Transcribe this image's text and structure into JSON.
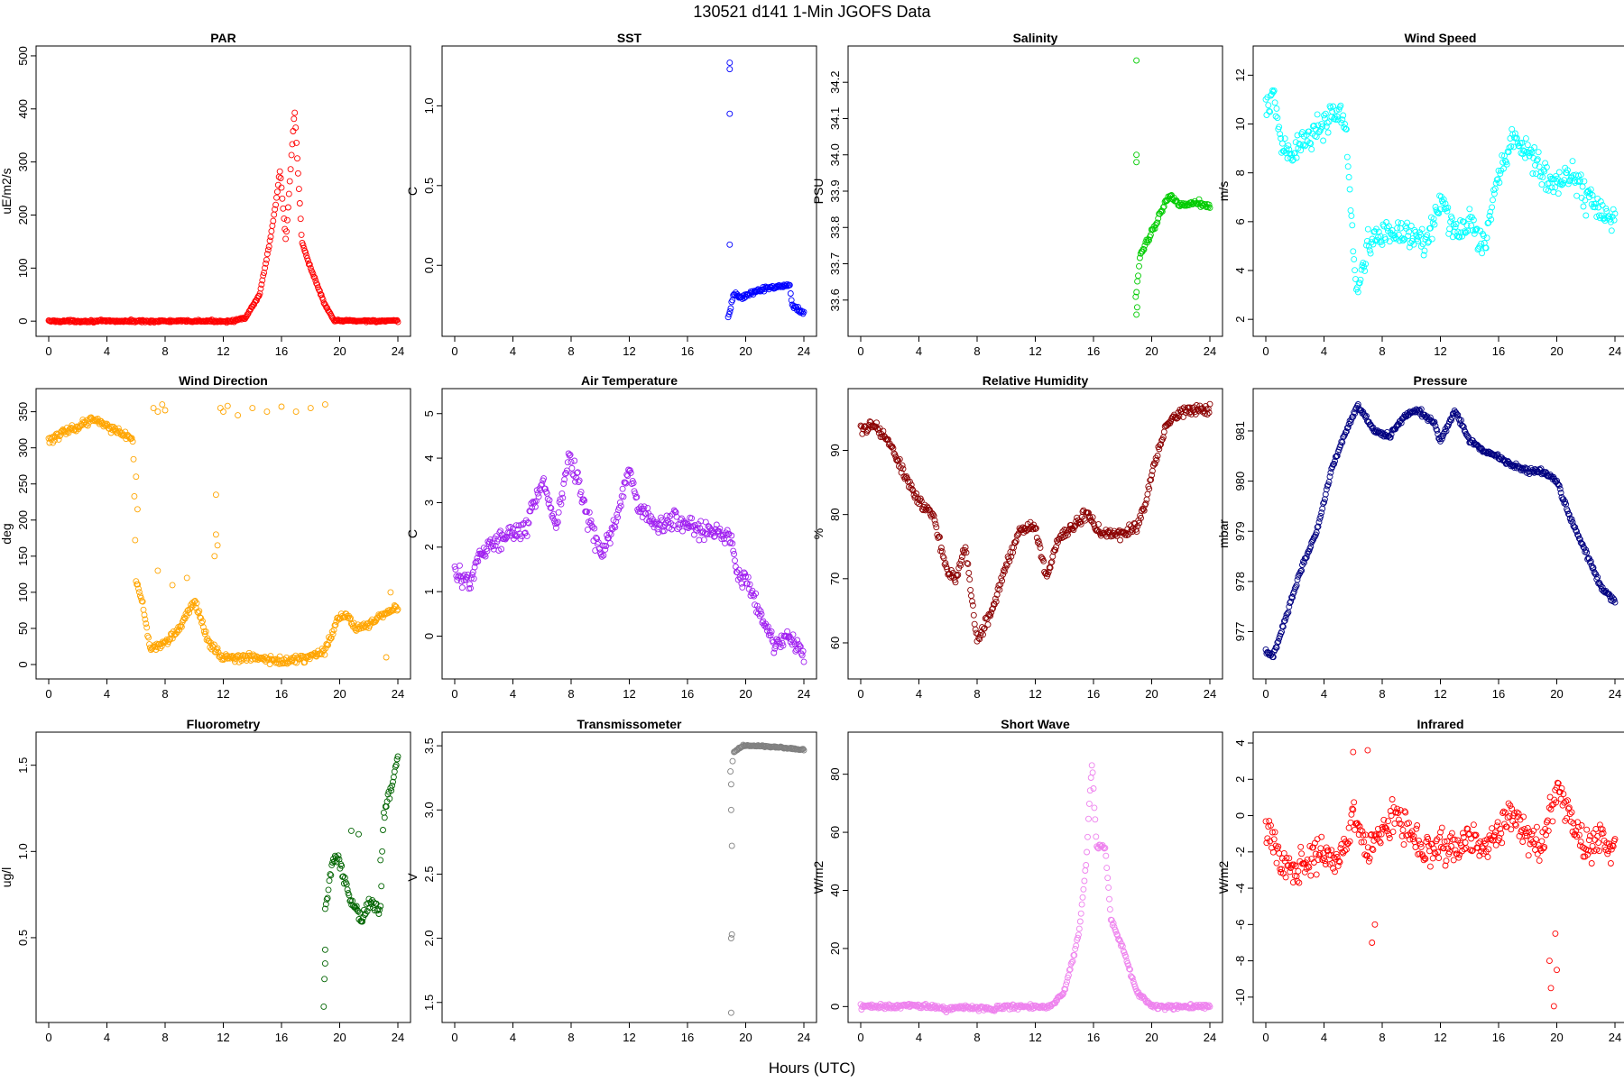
{
  "main_title": "130521   d141   1-Min  JGOFS Data",
  "shared_xlabel": "Hours (UTC)",
  "chart_data": [
    {
      "type": "scatter",
      "title": "PAR",
      "ylabel": "uE/m2/s",
      "color": "#ff0000",
      "xlim": [
        0,
        24
      ],
      "ylim": [
        -15,
        505
      ],
      "xticks": [
        0,
        4,
        8,
        12,
        16,
        20,
        24
      ],
      "yticks": [
        0,
        100,
        200,
        300,
        400,
        500
      ],
      "anchors": [
        [
          0,
          0
        ],
        [
          12.5,
          0
        ],
        [
          13.5,
          5
        ],
        [
          14.5,
          50
        ],
        [
          15.2,
          150
        ],
        [
          15.6,
          220
        ],
        [
          15.9,
          285
        ],
        [
          16.3,
          150
        ],
        [
          16.9,
          400
        ],
        [
          17.4,
          150
        ],
        [
          18.0,
          100
        ],
        [
          19.0,
          30
        ],
        [
          19.6,
          1
        ],
        [
          24,
          0
        ]
      ],
      "noise": 3
    },
    {
      "type": "scatter",
      "title": "SST",
      "ylabel": "C",
      "color": "#0000ff",
      "xlim": [
        0,
        24
      ],
      "ylim": [
        -0.4,
        1.33
      ],
      "xticks": [
        0,
        4,
        8,
        12,
        16,
        20,
        24
      ],
      "yticks": [
        0.0,
        0.5,
        1.0
      ],
      "anchors": [
        [
          18.8,
          -0.33
        ],
        [
          19.2,
          -0.18
        ],
        [
          19.8,
          -0.2
        ],
        [
          20.5,
          -0.17
        ],
        [
          21.5,
          -0.14
        ],
        [
          22.5,
          -0.13
        ],
        [
          23.0,
          -0.12
        ],
        [
          23.2,
          -0.25
        ],
        [
          24,
          -0.3
        ]
      ],
      "noise": 0.02,
      "extra_points": [
        [
          18.9,
          1.27
        ],
        [
          18.9,
          1.23
        ],
        [
          18.9,
          0.95
        ],
        [
          18.9,
          0.13
        ]
      ]
    },
    {
      "type": "scatter",
      "title": "Salinity",
      "ylabel": "PSU",
      "color": "#00cc00",
      "xlim": [
        0,
        24
      ],
      "ylim": [
        33.52,
        34.28
      ],
      "xticks": [
        0,
        4,
        8,
        12,
        16,
        20,
        24
      ],
      "yticks": [
        33.6,
        33.7,
        33.8,
        33.9,
        34.0,
        34.1,
        34.2
      ],
      "anchors": [
        [
          18.9,
          33.6
        ],
        [
          19.2,
          33.72
        ],
        [
          19.6,
          33.76
        ],
        [
          20.2,
          33.8
        ],
        [
          20.8,
          33.86
        ],
        [
          21.3,
          33.89
        ],
        [
          22.0,
          33.86
        ],
        [
          23.0,
          33.87
        ],
        [
          24,
          33.86
        ]
      ],
      "noise": 0.012,
      "extra_points": [
        [
          18.95,
          34.26
        ],
        [
          18.95,
          34.0
        ],
        [
          18.95,
          33.98
        ],
        [
          18.95,
          33.56
        ],
        [
          19.0,
          33.58
        ]
      ]
    },
    {
      "type": "scatter",
      "title": "Wind Speed",
      "ylabel": "m/s",
      "color": "#00ffff",
      "xlim": [
        0,
        24
      ],
      "ylim": [
        1.6,
        12.9
      ],
      "xticks": [
        0,
        4,
        8,
        12,
        16,
        20,
        24
      ],
      "yticks": [
        2,
        4,
        6,
        8,
        10,
        12
      ],
      "anchors": [
        [
          0,
          10.5
        ],
        [
          0.5,
          11.5
        ],
        [
          1.0,
          9
        ],
        [
          2,
          9
        ],
        [
          3,
          9.5
        ],
        [
          4,
          10
        ],
        [
          5,
          10.5
        ],
        [
          5.5,
          10
        ],
        [
          5.8,
          7
        ],
        [
          6.2,
          3
        ],
        [
          7,
          5
        ],
        [
          8,
          5.5
        ],
        [
          10,
          5.5
        ],
        [
          11,
          5
        ],
        [
          12,
          7
        ],
        [
          13,
          5.5
        ],
        [
          14,
          6
        ],
        [
          15,
          5
        ],
        [
          16,
          8
        ],
        [
          17,
          9.5
        ],
        [
          18,
          9
        ],
        [
          19,
          8
        ],
        [
          20,
          7.5
        ],
        [
          21,
          8
        ],
        [
          22,
          7
        ],
        [
          23,
          6.5
        ],
        [
          24,
          6
        ]
      ],
      "noise": 0.9
    },
    {
      "type": "scatter",
      "title": "Wind Direction",
      "ylabel": "deg",
      "color": "#ffa500",
      "xlim": [
        0,
        24
      ],
      "ylim": [
        -10,
        372
      ],
      "xticks": [
        0,
        4,
        8,
        12,
        16,
        20,
        24
      ],
      "yticks": [
        0,
        50,
        100,
        150,
        200,
        250,
        300,
        350
      ],
      "anchors": [
        [
          0,
          310
        ],
        [
          1,
          320
        ],
        [
          2,
          330
        ],
        [
          3,
          340
        ],
        [
          4,
          330
        ],
        [
          5,
          320
        ],
        [
          5.8,
          310
        ],
        [
          6.0,
          120
        ],
        [
          6.5,
          80
        ],
        [
          7.0,
          20
        ],
        [
          8,
          30
        ],
        [
          9,
          50
        ],
        [
          10,
          90
        ],
        [
          10.5,
          60
        ],
        [
          11,
          30
        ],
        [
          12,
          10
        ],
        [
          14,
          10
        ],
        [
          16,
          5
        ],
        [
          18,
          10
        ],
        [
          19,
          20
        ],
        [
          19.8,
          60
        ],
        [
          20.5,
          70
        ],
        [
          21,
          50
        ],
        [
          22,
          55
        ],
        [
          23,
          70
        ],
        [
          24,
          80
        ]
      ],
      "noise": 8,
      "extra_points": [
        [
          7.2,
          355
        ],
        [
          7.5,
          350
        ],
        [
          7.8,
          360
        ],
        [
          8.0,
          352
        ],
        [
          11.8,
          355
        ],
        [
          12.0,
          350
        ],
        [
          12.3,
          358
        ],
        [
          13,
          345
        ],
        [
          14,
          355
        ],
        [
          15,
          350
        ],
        [
          16,
          357
        ],
        [
          17,
          350
        ],
        [
          18,
          355
        ],
        [
          11.5,
          180
        ],
        [
          11.6,
          165
        ],
        [
          11.4,
          150
        ],
        [
          11.5,
          235
        ],
        [
          6.0,
          260
        ],
        [
          6.1,
          215
        ],
        [
          7.5,
          130
        ],
        [
          8.5,
          110
        ],
        [
          9.5,
          120
        ],
        [
          19.0,
          360
        ],
        [
          23.2,
          10
        ],
        [
          23.5,
          100
        ]
      ]
    },
    {
      "type": "scatter",
      "title": "Air Temperature",
      "ylabel": "C",
      "color": "#a020f0",
      "xlim": [
        0,
        24
      ],
      "ylim": [
        -0.8,
        5.4
      ],
      "xticks": [
        0,
        4,
        8,
        12,
        16,
        20,
        24
      ],
      "yticks": [
        0,
        1,
        2,
        3,
        4,
        5
      ],
      "anchors": [
        [
          0,
          1.5
        ],
        [
          1,
          1.2
        ],
        [
          2,
          2.0
        ],
        [
          3,
          2.2
        ],
        [
          4,
          2.3
        ],
        [
          5,
          2.5
        ],
        [
          6,
          3.5
        ],
        [
          7,
          2.5
        ],
        [
          7.8,
          4.0
        ],
        [
          8.5,
          3.5
        ],
        [
          9,
          2.8
        ],
        [
          10,
          1.8
        ],
        [
          11,
          2.5
        ],
        [
          12,
          3.8
        ],
        [
          12.5,
          3.0
        ],
        [
          13,
          2.8
        ],
        [
          14,
          2.5
        ],
        [
          15,
          2.6
        ],
        [
          16,
          2.5
        ],
        [
          17,
          2.4
        ],
        [
          18,
          2.3
        ],
        [
          19,
          2.2
        ],
        [
          19.5,
          1.3
        ],
        [
          20,
          1.3
        ],
        [
          21,
          0.5
        ],
        [
          22,
          -0.2
        ],
        [
          23,
          0
        ],
        [
          24,
          -0.4
        ]
      ],
      "noise": 0.3
    },
    {
      "type": "scatter",
      "title": "Relative Humidity",
      "ylabel": "%",
      "color": "#8b0000",
      "xlim": [
        0,
        24
      ],
      "ylim": [
        55.5,
        98.5
      ],
      "xticks": [
        0,
        4,
        8,
        12,
        16,
        20,
        24
      ],
      "yticks": [
        60,
        70,
        80,
        90
      ],
      "anchors": [
        [
          0,
          93
        ],
        [
          1,
          94
        ],
        [
          2,
          91
        ],
        [
          3,
          86
        ],
        [
          4,
          82
        ],
        [
          5,
          80
        ],
        [
          5.8,
          72
        ],
        [
          6.5,
          70
        ],
        [
          7.2,
          75
        ],
        [
          8,
          60
        ],
        [
          9,
          65
        ],
        [
          10,
          72
        ],
        [
          11,
          78
        ],
        [
          12,
          78
        ],
        [
          12.8,
          70
        ],
        [
          13.5,
          76
        ],
        [
          14.5,
          78
        ],
        [
          15.5,
          80
        ],
        [
          16.5,
          77
        ],
        [
          18,
          77
        ],
        [
          19,
          78
        ],
        [
          19.6,
          82
        ],
        [
          20.2,
          88
        ],
        [
          21,
          94
        ],
        [
          22,
          96
        ],
        [
          24,
          96.5
        ]
      ],
      "noise": 1.2
    },
    {
      "type": "scatter",
      "title": "Pressure",
      "ylabel": "mbar",
      "color": "#000080",
      "xlim": [
        0,
        24
      ],
      "ylim": [
        976.2,
        981.7
      ],
      "xticks": [
        0,
        4,
        8,
        12,
        16,
        20,
        24
      ],
      "yticks": [
        977,
        978,
        979,
        980,
        981
      ],
      "anchors": [
        [
          0,
          976.6
        ],
        [
          0.5,
          976.5
        ],
        [
          1.5,
          977.4
        ],
        [
          2.5,
          978.3
        ],
        [
          3.5,
          979.0
        ],
        [
          4.5,
          980.2
        ],
        [
          5.5,
          981.0
        ],
        [
          6.3,
          981.5
        ],
        [
          7.5,
          981.0
        ],
        [
          8.5,
          980.9
        ],
        [
          9.5,
          981.3
        ],
        [
          10.5,
          981.4
        ],
        [
          11.5,
          981.2
        ],
        [
          12,
          980.8
        ],
        [
          13,
          981.4
        ],
        [
          14,
          980.8
        ],
        [
          15,
          980.6
        ],
        [
          16,
          980.5
        ],
        [
          17,
          980.3
        ],
        [
          18,
          980.2
        ],
        [
          19,
          980.2
        ],
        [
          20,
          980.0
        ],
        [
          21,
          979.2
        ],
        [
          22,
          978.6
        ],
        [
          23,
          977.9
        ],
        [
          24,
          977.6
        ]
      ],
      "noise": 0.08
    },
    {
      "type": "scatter",
      "title": "Fluorometry",
      "ylabel": "ug/l",
      "color": "#006400",
      "xlim": [
        0,
        24
      ],
      "ylim": [
        0.05,
        1.65
      ],
      "xticks": [
        0,
        4,
        8,
        12,
        16,
        20,
        24
      ],
      "yticks": [
        0.5,
        1.0,
        1.5
      ],
      "anchors": [
        [
          19,
          0.65
        ],
        [
          19.5,
          0.95
        ],
        [
          20.0,
          0.95
        ],
        [
          20.6,
          0.75
        ],
        [
          21.0,
          0.7
        ],
        [
          21.5,
          0.6
        ],
        [
          22.0,
          0.7
        ],
        [
          22.8,
          0.65
        ],
        [
          23.0,
          1.2
        ],
        [
          23.5,
          1.35
        ],
        [
          24,
          1.55
        ]
      ],
      "noise": 0.05,
      "extra_points": [
        [
          18.9,
          0.1
        ],
        [
          18.95,
          0.26
        ],
        [
          19.0,
          0.35
        ],
        [
          19.0,
          0.43
        ],
        [
          20.8,
          1.12
        ],
        [
          21.3,
          1.1
        ],
        [
          22.8,
          0.95
        ]
      ]
    },
    {
      "type": "scatter",
      "title": "Transmissometer",
      "ylabel": "V",
      "color": "#808080",
      "xlim": [
        0,
        24
      ],
      "ylim": [
        1.4,
        3.55
      ],
      "xticks": [
        0,
        4,
        8,
        12,
        16,
        20,
        24
      ],
      "yticks": [
        1.5,
        2.0,
        2.5,
        3.0,
        3.5
      ],
      "anchors": [
        [
          19.2,
          3.45
        ],
        [
          19.8,
          3.5
        ],
        [
          21,
          3.5
        ],
        [
          22,
          3.49
        ],
        [
          23,
          3.48
        ],
        [
          24,
          3.47
        ]
      ],
      "noise": 0.01,
      "extra_points": [
        [
          18.95,
          3.3
        ],
        [
          19.0,
          3.2
        ],
        [
          19.0,
          3.0
        ],
        [
          19.05,
          2.72
        ],
        [
          19.0,
          2.0
        ],
        [
          19.05,
          2.03
        ],
        [
          19.0,
          1.42
        ],
        [
          19.1,
          3.38
        ]
      ]
    },
    {
      "type": "scatter",
      "title": "Short Wave",
      "ylabel": "W/m2",
      "color": "#ee82ee",
      "xlim": [
        0,
        24
      ],
      "ylim": [
        -3,
        92
      ],
      "xticks": [
        0,
        4,
        8,
        12,
        16,
        20,
        24
      ],
      "yticks": [
        0,
        20,
        40,
        60,
        80
      ],
      "anchors": [
        [
          0,
          0
        ],
        [
          5,
          0
        ],
        [
          6,
          -1
        ],
        [
          7,
          0
        ],
        [
          9,
          -1
        ],
        [
          10,
          0
        ],
        [
          13,
          0
        ],
        [
          14,
          5
        ],
        [
          15,
          25
        ],
        [
          15.5,
          50
        ],
        [
          15.9,
          85
        ],
        [
          16.2,
          55
        ],
        [
          16.8,
          55
        ],
        [
          17.2,
          30
        ],
        [
          18,
          20
        ],
        [
          19,
          5
        ],
        [
          20,
          0
        ],
        [
          24,
          0
        ]
      ],
      "noise": 1.2
    },
    {
      "type": "scatter",
      "title": "Infrared",
      "ylabel": "W/m2",
      "color": "#ff0000",
      "xlim": [
        0,
        24
      ],
      "ylim": [
        -11,
        4.2
      ],
      "xticks": [
        0,
        4,
        8,
        12,
        16,
        20,
        24
      ],
      "yticks": [
        -10,
        -8,
        -6,
        -4,
        -2,
        0,
        2,
        4
      ],
      "anchors": [
        [
          0,
          -1
        ],
        [
          1,
          -2
        ],
        [
          2,
          -3
        ],
        [
          3,
          -2.5
        ],
        [
          4,
          -2
        ],
        [
          5,
          -2.5
        ],
        [
          6,
          0
        ],
        [
          7,
          -2
        ],
        [
          8,
          -1
        ],
        [
          9,
          0
        ],
        [
          10,
          -1
        ],
        [
          11,
          -2
        ],
        [
          12,
          -1.5
        ],
        [
          13,
          -2
        ],
        [
          14,
          -1
        ],
        [
          15,
          -2
        ],
        [
          16,
          -0.5
        ],
        [
          17,
          0
        ],
        [
          18,
          -1
        ],
        [
          19,
          -2
        ],
        [
          20,
          1.5
        ],
        [
          21,
          0
        ],
        [
          22,
          -2
        ],
        [
          23,
          -1
        ],
        [
          24,
          -2
        ]
      ],
      "noise": 1.4,
      "extra_points": [
        [
          19.5,
          -8
        ],
        [
          19.6,
          -9.5
        ],
        [
          19.8,
          -10.5
        ],
        [
          20.0,
          -8.5
        ],
        [
          19.9,
          -6.5
        ],
        [
          7.3,
          -7
        ],
        [
          7.5,
          -6
        ],
        [
          6.0,
          3.5
        ],
        [
          7.0,
          3.6
        ]
      ]
    }
  ]
}
